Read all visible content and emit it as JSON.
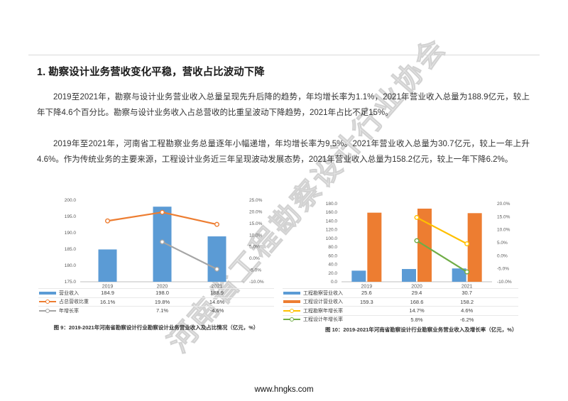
{
  "page": {
    "heading": "1. 勘察设计业务营收变化平稳，营收占比波动下降",
    "paragraphs": [
      "2019至2021年，勘察与设计业务营业收入总量呈现先升后降的趋势，年均增长率为1.1%，2021年营业收入总量为188.9亿元，较上年下降4.6个百分比。勘察与设计业务收入占总营收的比重呈波动下降趋势，2021年占比不足15%。",
      "2019年至2021年，河南省工程勘察业务总量逐年小幅递增，年均增长率为9.5%。2021年营业收入总量为30.7亿元，较上一年上升4.6%。作为传统业务的主要来源，工程设计业务近三年呈现波动发展态势，2021年营业收入总量为158.2亿元，较上一年下降6.2%。"
    ],
    "watermark": "河南省工程勘察设计行业协会",
    "footer": "www.hngks.com"
  },
  "colors": {
    "bar_blue": "#5B9BD5",
    "bar_orange": "#ED7D31",
    "line_orange": "#ED7D31",
    "line_gray": "#A5A5A5",
    "line_yellow": "#FFC000",
    "line_green": "#70AD47"
  },
  "chart_data": [
    {
      "type": "bar",
      "subtype": "bar-line-combo",
      "caption": "图 9：2019-2021年河南省勘察设计行业勘察设计业务营业收入及占比情况（亿元，%）",
      "categories": [
        "2019",
        "2020",
        "2021"
      ],
      "left_axis": {
        "min": 175,
        "max": 200,
        "step": 5,
        "ticks_top_down": [
          "200.0",
          "195.0",
          "190.0",
          "185.0",
          "180.0",
          "175.0"
        ]
      },
      "right_axis": {
        "min": -10,
        "max": 25,
        "step": 5,
        "ticks_top_down": [
          "25.0%",
          "20.0%",
          "15.0%",
          "10.0%",
          "5.0%",
          "0.0%",
          "-5.0%",
          "-10.0%"
        ]
      },
      "series": [
        {
          "name": "营业收入",
          "kind": "bar",
          "axis": "left",
          "color": "#5B9BD5",
          "values": [
            184.9,
            198.0,
            188.9
          ],
          "display": [
            "184.9",
            "198.0",
            "188.9"
          ]
        },
        {
          "name": "占总营收比重",
          "kind": "line",
          "axis": "right",
          "color": "#ED7D31",
          "values": [
            16.1,
            19.8,
            14.6
          ],
          "display": [
            "16.1%",
            "19.8%",
            "14.6%"
          ]
        },
        {
          "name": "年增长率",
          "kind": "line",
          "axis": "right",
          "color": "#A5A5A5",
          "values": [
            null,
            7.1,
            -4.6
          ],
          "display": [
            "",
            "7.1%",
            "-4.6%"
          ]
        }
      ]
    },
    {
      "type": "bar",
      "subtype": "grouped-bar-line-combo",
      "caption": "图 10：2019-2021年河南省勘察设计行业勘察业务营业收入及增长率（亿元，%）",
      "categories": [
        "2019",
        "2020",
        "2021"
      ],
      "left_axis": {
        "min": 0,
        "max": 180,
        "step": 20,
        "ticks_top_down": [
          "180.0",
          "160.0",
          "140.0",
          "120.0",
          "100.0",
          "80.0",
          "60.0",
          "40.0",
          "20.0",
          "0.0"
        ]
      },
      "right_axis": {
        "min": -10,
        "max": 20,
        "step": 5,
        "ticks_top_down": [
          "20.0%",
          "15.0%",
          "10.0%",
          "5.0%",
          "0.0%",
          "-5.0%",
          "-10.0%"
        ]
      },
      "series": [
        {
          "name": "工程勘察营业收入",
          "kind": "bar",
          "axis": "left",
          "color": "#5B9BD5",
          "values": [
            25.6,
            29.4,
            30.7
          ],
          "display": [
            "25.6",
            "29.4",
            "30.7"
          ]
        },
        {
          "name": "工程设计营业收入",
          "kind": "bar",
          "axis": "left",
          "color": "#ED7D31",
          "values": [
            159.3,
            168.6,
            158.2
          ],
          "display": [
            "159.3",
            "168.6",
            "158.2"
          ]
        },
        {
          "name": "工程勘察年增长率",
          "kind": "line",
          "axis": "right",
          "color": "#FFC000",
          "values": [
            null,
            14.7,
            4.6
          ],
          "display": [
            "",
            "14.7%",
            "4.6%"
          ]
        },
        {
          "name": "工程设计年增长率",
          "kind": "line",
          "axis": "right",
          "color": "#70AD47",
          "values": [
            null,
            5.8,
            -6.2
          ],
          "display": [
            "",
            "5.8%",
            "-6.2%"
          ]
        }
      ]
    }
  ]
}
